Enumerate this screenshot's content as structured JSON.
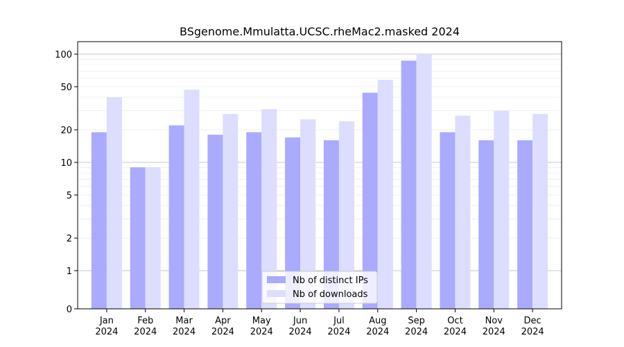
{
  "chart_data": {
    "type": "bar",
    "title": "BSgenome.Mmulatta.UCSC.rheMac2.masked 2024",
    "xlabel": "",
    "ylabel": "",
    "y_scale": "symlog",
    "y_ticks": [
      0,
      1,
      2,
      5,
      10,
      20,
      50,
      100
    ],
    "ylim": [
      0,
      120
    ],
    "categories": [
      "Jan",
      "Feb",
      "Mar",
      "Apr",
      "May",
      "Jun",
      "Jul",
      "Aug",
      "Sep",
      "Oct",
      "Nov",
      "Dec"
    ],
    "year_label": "2024",
    "legend_position": "bottom-center",
    "grid": true,
    "series": [
      {
        "name": "Nb of distinct IPs",
        "color": "#aaaaff",
        "values": [
          19,
          9,
          22,
          18,
          19,
          17,
          16,
          44,
          87,
          19,
          16,
          16
        ]
      },
      {
        "name": "Nb of downloads",
        "color": "#ddddff",
        "values": [
          40,
          9,
          47,
          28,
          31,
          25,
          24,
          58,
          100,
          27,
          30,
          28
        ]
      }
    ]
  }
}
